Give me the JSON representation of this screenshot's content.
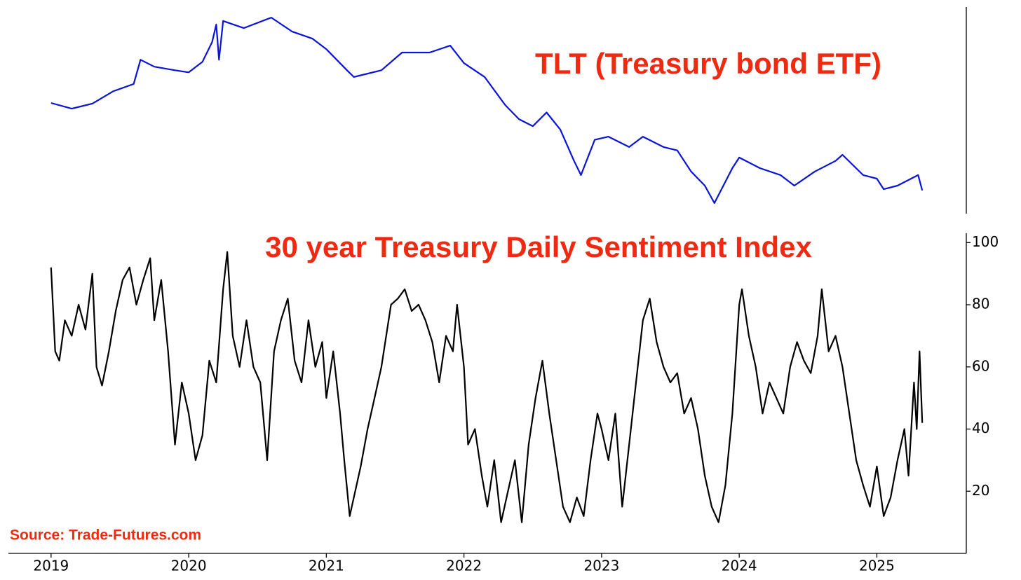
{
  "chart_data": [
    {
      "type": "line",
      "title": "TLT (Treasury bond ETF)",
      "color": "#0a14d8",
      "x": [
        2019.0,
        2019.15,
        2019.3,
        2019.45,
        2019.6,
        2019.65,
        2019.75,
        2019.9,
        2020.0,
        2020.1,
        2020.17,
        2020.2,
        2020.22,
        2020.25,
        2020.4,
        2020.6,
        2020.75,
        2020.9,
        2021.0,
        2021.15,
        2021.2,
        2021.4,
        2021.55,
        2021.75,
        2021.9,
        2022.0,
        2022.15,
        2022.3,
        2022.4,
        2022.5,
        2022.6,
        2022.7,
        2022.8,
        2022.85,
        2022.95,
        2023.05,
        2023.2,
        2023.3,
        2023.45,
        2023.55,
        2023.65,
        2023.75,
        2023.82,
        2023.95,
        2024.0,
        2024.15,
        2024.3,
        2024.4,
        2024.55,
        2024.7,
        2024.75,
        2024.9,
        2025.0,
        2025.05,
        2025.15,
        2025.3,
        2025.33
      ],
      "values": [
        130.5,
        127.8,
        130.2,
        136,
        139.5,
        151,
        147.7,
        146,
        145,
        150,
        159.4,
        167.7,
        151,
        169.4,
        166,
        171,
        164.4,
        161,
        156,
        146,
        142.8,
        146,
        154.4,
        154.4,
        157.7,
        149.4,
        142.8,
        129.5,
        122.8,
        119.5,
        126,
        117.9,
        103,
        96.3,
        113,
        114.5,
        109.6,
        114.5,
        109.6,
        108,
        98,
        91.3,
        83,
        99.6,
        104.6,
        99.6,
        96.3,
        91.3,
        98,
        103,
        105.9,
        96.3,
        94.6,
        89.6,
        91.3,
        96.3,
        89
      ],
      "xlim": [
        2018.69,
        2025.65
      ],
      "ylim": [
        78,
        176
      ]
    },
    {
      "type": "line",
      "title": "30 year Treasury Daily Sentiment Index",
      "color": "#000000",
      "x": [
        2019.0,
        2019.03,
        2019.06,
        2019.1,
        2019.15,
        2019.2,
        2019.25,
        2019.3,
        2019.33,
        2019.37,
        2019.42,
        2019.47,
        2019.52,
        2019.57,
        2019.62,
        2019.67,
        2019.72,
        2019.75,
        2019.8,
        2019.85,
        2019.9,
        2019.95,
        2020.0,
        2020.05,
        2020.1,
        2020.15,
        2020.2,
        2020.25,
        2020.28,
        2020.32,
        2020.37,
        2020.42,
        2020.47,
        2020.52,
        2020.57,
        2020.62,
        2020.67,
        2020.72,
        2020.77,
        2020.82,
        2020.87,
        2020.92,
        2020.97,
        2021.0,
        2021.05,
        2021.1,
        2021.13,
        2021.17,
        2021.2,
        2021.25,
        2021.3,
        2021.35,
        2021.4,
        2021.47,
        2021.52,
        2021.57,
        2021.62,
        2021.67,
        2021.72,
        2021.77,
        2021.82,
        2021.87,
        2021.92,
        2021.95,
        2022.0,
        2022.03,
        2022.08,
        2022.13,
        2022.17,
        2022.22,
        2022.27,
        2022.32,
        2022.37,
        2022.42,
        2022.47,
        2022.52,
        2022.57,
        2022.62,
        2022.67,
        2022.72,
        2022.77,
        2022.82,
        2022.87,
        2022.92,
        2022.97,
        2023.0,
        2023.05,
        2023.1,
        2023.15,
        2023.2,
        2023.25,
        2023.3,
        2023.35,
        2023.4,
        2023.45,
        2023.5,
        2023.55,
        2023.6,
        2023.65,
        2023.7,
        2023.75,
        2023.8,
        2023.85,
        2023.9,
        2023.95,
        2024.0,
        2024.02,
        2024.07,
        2024.12,
        2024.17,
        2024.22,
        2024.27,
        2024.32,
        2024.37,
        2024.42,
        2024.47,
        2024.52,
        2024.57,
        2024.6,
        2024.65,
        2024.7,
        2024.75,
        2024.8,
        2024.85,
        2024.9,
        2024.95,
        2025.0,
        2025.05,
        2025.1,
        2025.15,
        2025.2,
        2025.23,
        2025.27,
        2025.29,
        2025.31,
        2025.33
      ],
      "values": [
        92,
        65,
        62,
        75,
        70,
        80,
        72,
        90,
        60,
        54,
        65,
        78,
        88,
        92,
        80,
        88,
        95,
        75,
        88,
        65,
        35,
        55,
        45,
        30,
        38,
        62,
        55,
        85,
        97,
        70,
        60,
        75,
        60,
        55,
        30,
        65,
        75,
        82,
        62,
        55,
        75,
        60,
        68,
        50,
        65,
        45,
        30,
        12,
        18,
        28,
        40,
        50,
        60,
        80,
        82,
        85,
        78,
        80,
        75,
        68,
        55,
        70,
        65,
        80,
        60,
        35,
        40,
        25,
        15,
        30,
        10,
        20,
        30,
        10,
        35,
        50,
        62,
        45,
        30,
        15,
        10,
        18,
        12,
        30,
        45,
        40,
        30,
        45,
        15,
        35,
        55,
        75,
        82,
        68,
        60,
        55,
        58,
        45,
        50,
        40,
        25,
        15,
        10,
        22,
        45,
        80,
        85,
        70,
        60,
        45,
        55,
        50,
        45,
        60,
        68,
        62,
        58,
        70,
        85,
        65,
        70,
        60,
        45,
        30,
        22,
        15,
        28,
        12,
        18,
        30,
        40,
        25,
        55,
        40,
        65,
        42
      ],
      "xlim": [
        2018.69,
        2025.65
      ],
      "ylim": [
        0,
        103
      ],
      "xticks": [
        2019,
        2020,
        2021,
        2022,
        2023,
        2024,
        2025
      ],
      "yticks": [
        20,
        40,
        60,
        80,
        100
      ],
      "source": "Source: Trade-Futures.com"
    }
  ]
}
